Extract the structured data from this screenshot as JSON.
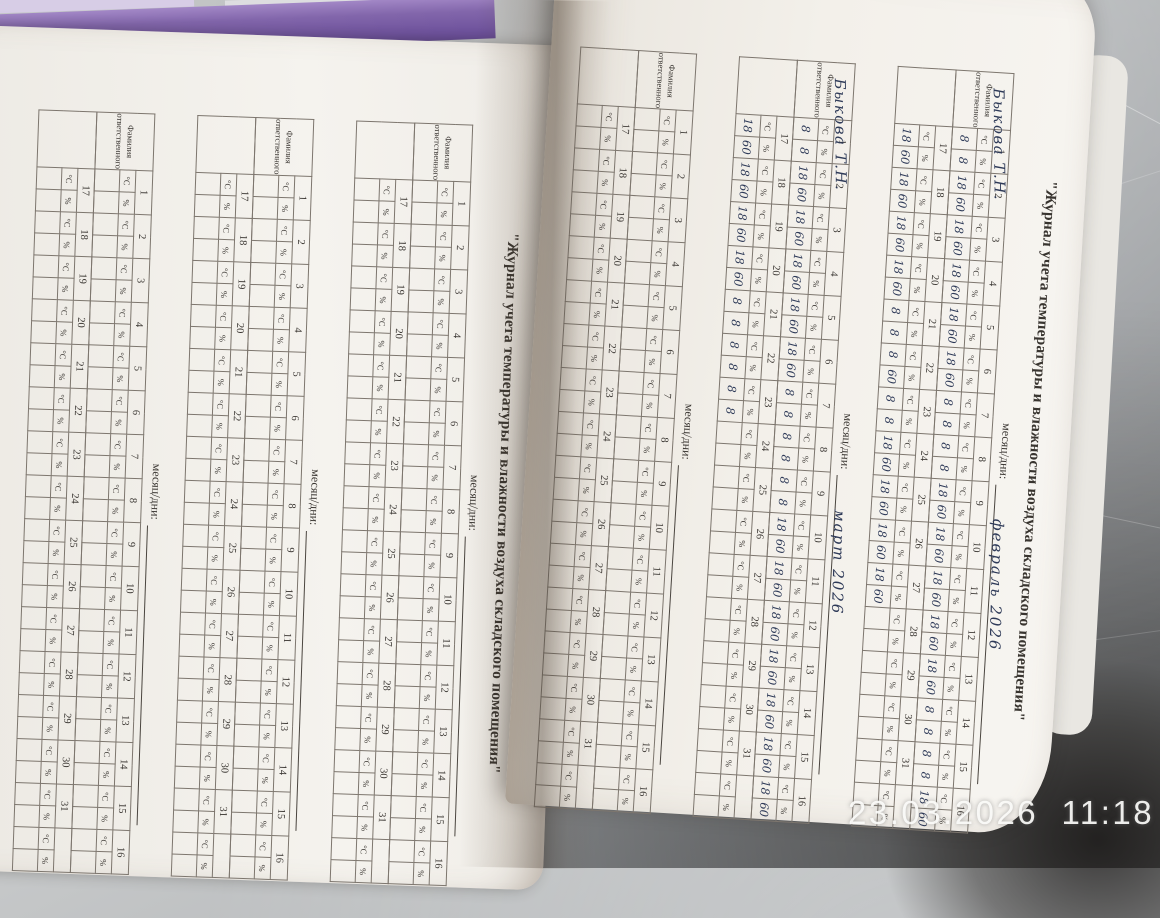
{
  "overlay": {
    "timestamp": "23.03.2026  11:18"
  },
  "form": {
    "title": "\"Журнал учета температуры и влажности воздуха складского помещения\"",
    "month_label": "месяц/дни:",
    "responsible_label_line1": "Фамилия",
    "responsible_label_line2": "ответственного",
    "temp_unit": "°С",
    "humidity_unit": "%",
    "days_upper": [
      "1",
      "2",
      "3",
      "4",
      "5",
      "6",
      "7",
      "8",
      "9",
      "10",
      "11",
      "12",
      "13",
      "14",
      "15",
      "16"
    ],
    "days_lower": [
      "17",
      "18",
      "19",
      "20",
      "21",
      "22",
      "23",
      "24",
      "25",
      "26",
      "27",
      "28",
      "29",
      "30",
      "31",
      ""
    ]
  },
  "colors": {
    "ink": "#2e3a58",
    "cover_purple": "#7a5ca3",
    "paper": "#f3f0ea",
    "steel": "#9fa2a4"
  },
  "pages": {
    "left": {
      "blocks": [
        {
          "month": "",
          "responsible": "",
          "upper": [],
          "lower": []
        },
        {
          "month": "",
          "responsible": "",
          "upper": [],
          "lower": []
        },
        {
          "month": "",
          "responsible": "",
          "upper": [],
          "lower": []
        }
      ]
    },
    "right": {
      "blocks": [
        {
          "month": "февраль 2026",
          "responsible": "Быкова Т.Н.",
          "upper": [
            "8",
            "8",
            "18",
            "60",
            "18",
            "60",
            "18",
            "60",
            "18",
            "60",
            "18",
            "60",
            "8",
            "8",
            "8",
            "8",
            "18",
            "60",
            "18",
            "60",
            "18",
            "60",
            "18",
            "60",
            "18",
            "60",
            "8",
            "8",
            "8",
            "8",
            "18",
            "60"
          ],
          "lower": [
            "18",
            "60",
            "18",
            "60",
            "18",
            "60",
            "18",
            "60",
            "8",
            "8",
            "8",
            "60",
            "8",
            "8",
            "18",
            "60",
            "18",
            "60",
            "18",
            "60",
            "18",
            "60",
            "",
            "",
            "",
            "",
            "",
            "",
            "",
            "",
            "",
            ""
          ]
        },
        {
          "month": "март 2026",
          "responsible": "Быкова Т.Н.",
          "upper": [
            "8",
            "8",
            "18",
            "60",
            "18",
            "60",
            "18",
            "60",
            "18",
            "60",
            "18",
            "60",
            "8",
            "8",
            "8",
            "8",
            "8",
            "8",
            "18",
            "60",
            "18",
            "60",
            "18",
            "60",
            "18",
            "60",
            "18",
            "60",
            "18",
            "60",
            "18",
            "60"
          ],
          "lower": [
            "18",
            "60",
            "18",
            "60",
            "18",
            "60",
            "18",
            "60",
            "8",
            "8",
            "8",
            "8",
            "8",
            "8",
            "",
            "",
            "",
            "",
            "",
            "",
            "",
            "",
            "",
            "",
            "",
            "",
            "",
            "",
            "",
            "",
            "",
            ""
          ]
        },
        {
          "month": "",
          "responsible": "",
          "upper": [],
          "lower": []
        }
      ]
    }
  }
}
